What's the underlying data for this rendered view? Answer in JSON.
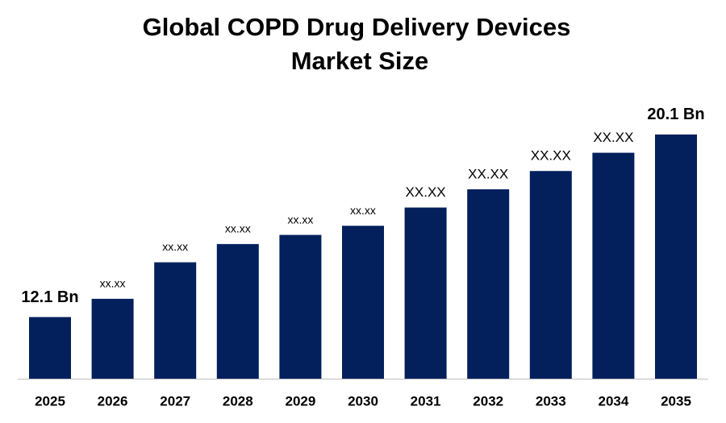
{
  "chart_data": {
    "type": "bar",
    "title": [
      "Global COPD Drug Delivery Devices",
      "Market Size"
    ],
    "categories": [
      "2025",
      "2026",
      "2027",
      "2028",
      "2029",
      "2030",
      "2031",
      "2032",
      "2033",
      "2034",
      "2035"
    ],
    "values": [
      12.1,
      12.9,
      14.5,
      15.3,
      15.7,
      16.1,
      16.9,
      17.7,
      18.5,
      19.3,
      20.1
    ],
    "value_labels": [
      "12.1 Bn",
      "xx.xx",
      "xx.xx",
      "xx.xx",
      "xx.xx",
      "xx.xx",
      "XX.XX",
      "XX.XX",
      "XX.XX",
      "XX.XX",
      "20.1 Bn"
    ],
    "color": "#03205c",
    "ylim": [
      9.4,
      20.5
    ]
  }
}
